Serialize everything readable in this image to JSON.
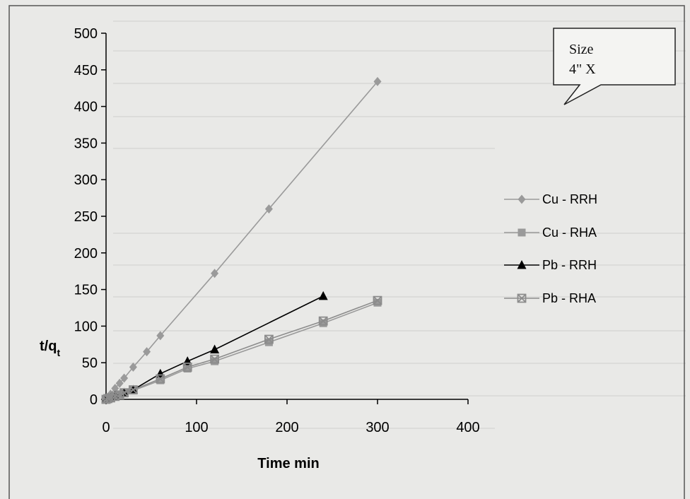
{
  "chart_data": {
    "type": "line",
    "xlabel": "Time min",
    "ylabel_main": "t/q",
    "ylabel_sub": "t",
    "xlim": [
      0,
      400
    ],
    "ylim": [
      0,
      500
    ],
    "xticks": [
      "0",
      "100",
      "200",
      "300",
      "400"
    ],
    "yticks": [
      "0",
      "50",
      "100",
      "150",
      "200",
      "250",
      "300",
      "350",
      "400",
      "450",
      "500"
    ],
    "grid": false,
    "legend_position": "right",
    "series": [
      {
        "name": "Cu - RRH",
        "color": "#9a9a9a",
        "marker": "diamond",
        "points": [
          [
            0,
            0
          ],
          [
            2,
            3
          ],
          [
            5,
            7
          ],
          [
            10,
            15
          ],
          [
            15,
            22
          ],
          [
            20,
            29
          ],
          [
            30,
            44
          ],
          [
            45,
            65
          ],
          [
            60,
            87
          ],
          [
            120,
            172
          ],
          [
            180,
            260
          ],
          [
            300,
            434
          ]
        ]
      },
      {
        "name": "Cu - RHA",
        "color": "#9a9a9a",
        "marker": "square",
        "points": [
          [
            0,
            0
          ],
          [
            2,
            1
          ],
          [
            5,
            2
          ],
          [
            10,
            4
          ],
          [
            15,
            6
          ],
          [
            20,
            8
          ],
          [
            30,
            12
          ],
          [
            60,
            26
          ],
          [
            90,
            42
          ],
          [
            120,
            52
          ],
          [
            180,
            78
          ],
          [
            240,
            104
          ],
          [
            300,
            132
          ]
        ]
      },
      {
        "name": "Pb - RRH",
        "color": "#000000",
        "marker": "triangle",
        "points": [
          [
            0,
            0
          ],
          [
            5,
            2
          ],
          [
            10,
            5
          ],
          [
            20,
            9
          ],
          [
            30,
            13
          ],
          [
            60,
            35
          ],
          [
            90,
            52
          ],
          [
            120,
            68
          ],
          [
            240,
            141
          ]
        ]
      },
      {
        "name": "Pb - RHA",
        "color": "#8c8c8c",
        "marker": "x-square",
        "points": [
          [
            0,
            0
          ],
          [
            2,
            1
          ],
          [
            5,
            2
          ],
          [
            10,
            4
          ],
          [
            15,
            6
          ],
          [
            20,
            9
          ],
          [
            30,
            13
          ],
          [
            60,
            28
          ],
          [
            90,
            44
          ],
          [
            120,
            55
          ],
          [
            180,
            82
          ],
          [
            240,
            107
          ],
          [
            300,
            135
          ]
        ]
      }
    ]
  },
  "callout": {
    "line1": "Size",
    "line2": "4\" X"
  }
}
